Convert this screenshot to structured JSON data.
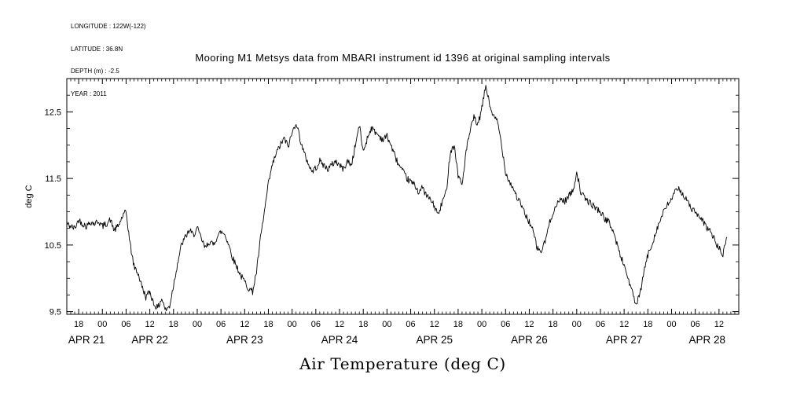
{
  "header_info": {
    "lines": [
      "LONGITUDE : 122W(-122)",
      "LATITUDE : 36.8N",
      "DEPTH (m) : -2.5",
      "YEAR : 2011"
    ]
  },
  "chart_data": {
    "type": "line",
    "title": "Mooring M1 Metsys data from MBARI instrument id 1396 at original sampling intervals",
    "xlabel": "Air Temperature (deg C)",
    "ylabel": "deg C",
    "grid": false,
    "line_color": "#000000",
    "ylim": [
      9.46,
      13.0
    ],
    "xlim_hours": [
      15,
      185
    ],
    "y_ticks": [
      9.5,
      10.5,
      11.5,
      12.5
    ],
    "y_tick_labels": [
      "9.5",
      "10.5",
      "11.5",
      "12.5"
    ],
    "x_ticks_hours": [
      18,
      24,
      30,
      36,
      42,
      48,
      54,
      60,
      66,
      72,
      78,
      84,
      90,
      96,
      102,
      108,
      114,
      120,
      126,
      132,
      138,
      144,
      150,
      156,
      162,
      168,
      174,
      180
    ],
    "x_tick_labels": [
      "18",
      "00",
      "06",
      "12",
      "18",
      "00",
      "06",
      "12",
      "18",
      "00",
      "06",
      "12",
      "18",
      "00",
      "06",
      "12",
      "18",
      "00",
      "06",
      "12",
      "18",
      "00",
      "06",
      "12",
      "18",
      "00",
      "06",
      "12"
    ],
    "day_labels": [
      {
        "hour": 20,
        "label": "APR 21"
      },
      {
        "hour": 36,
        "label": "APR 22"
      },
      {
        "hour": 60,
        "label": "APR 23"
      },
      {
        "hour": 84,
        "label": "APR 24"
      },
      {
        "hour": 108,
        "label": "APR 25"
      },
      {
        "hour": 132,
        "label": "APR 26"
      },
      {
        "hour": 156,
        "label": "APR 27"
      },
      {
        "hour": 177,
        "label": "APR 28"
      }
    ],
    "noise_amplitude": 0.05,
    "noise_seed": 42,
    "series": [
      {
        "name": "air_temperature",
        "x_start_hour": 15,
        "x_step_hours": 1,
        "y": [
          10.82,
          10.78,
          10.75,
          10.88,
          10.82,
          10.78,
          10.85,
          10.82,
          10.86,
          10.78,
          10.82,
          10.88,
          10.72,
          10.78,
          10.92,
          11.0,
          10.52,
          10.18,
          10.08,
          9.88,
          9.72,
          9.8,
          9.62,
          9.55,
          9.7,
          9.52,
          9.58,
          9.9,
          10.22,
          10.5,
          10.62,
          10.72,
          10.65,
          10.75,
          10.6,
          10.45,
          10.55,
          10.5,
          10.62,
          10.7,
          10.66,
          10.5,
          10.3,
          10.18,
          10.04,
          9.95,
          9.85,
          9.8,
          10.1,
          10.6,
          11.0,
          11.42,
          11.7,
          11.88,
          12.0,
          12.1,
          11.98,
          12.18,
          12.35,
          12.1,
          11.88,
          11.74,
          11.6,
          11.66,
          11.76,
          11.7,
          11.64,
          11.7,
          11.76,
          11.7,
          11.64,
          11.76,
          11.7,
          12.0,
          12.3,
          11.9,
          12.1,
          12.26,
          12.2,
          12.14,
          12.08,
          12.14,
          12.0,
          11.84,
          11.7,
          11.6,
          11.5,
          11.45,
          11.4,
          11.3,
          11.36,
          11.24,
          11.18,
          11.08,
          10.95,
          11.15,
          11.3,
          11.9,
          12.0,
          11.55,
          11.4,
          11.9,
          12.2,
          12.42,
          12.3,
          12.55,
          12.9,
          12.6,
          12.42,
          12.35,
          12.0,
          11.6,
          11.45,
          11.35,
          11.2,
          11.1,
          10.95,
          10.85,
          10.7,
          10.45,
          10.4,
          10.55,
          10.8,
          11.0,
          11.1,
          11.2,
          11.15,
          11.25,
          11.3,
          11.6,
          11.3,
          11.2,
          11.15,
          11.1,
          11.05,
          11.0,
          10.9,
          10.85,
          10.75,
          10.55,
          10.35,
          10.2,
          10.0,
          9.8,
          9.6,
          9.75,
          10.1,
          10.35,
          10.5,
          10.7,
          10.85,
          11.0,
          11.1,
          11.2,
          11.3,
          11.35,
          11.25,
          11.15,
          11.05,
          11.0,
          10.9,
          10.85,
          10.75,
          10.7,
          10.55,
          10.45,
          10.35,
          10.62
        ]
      }
    ]
  }
}
